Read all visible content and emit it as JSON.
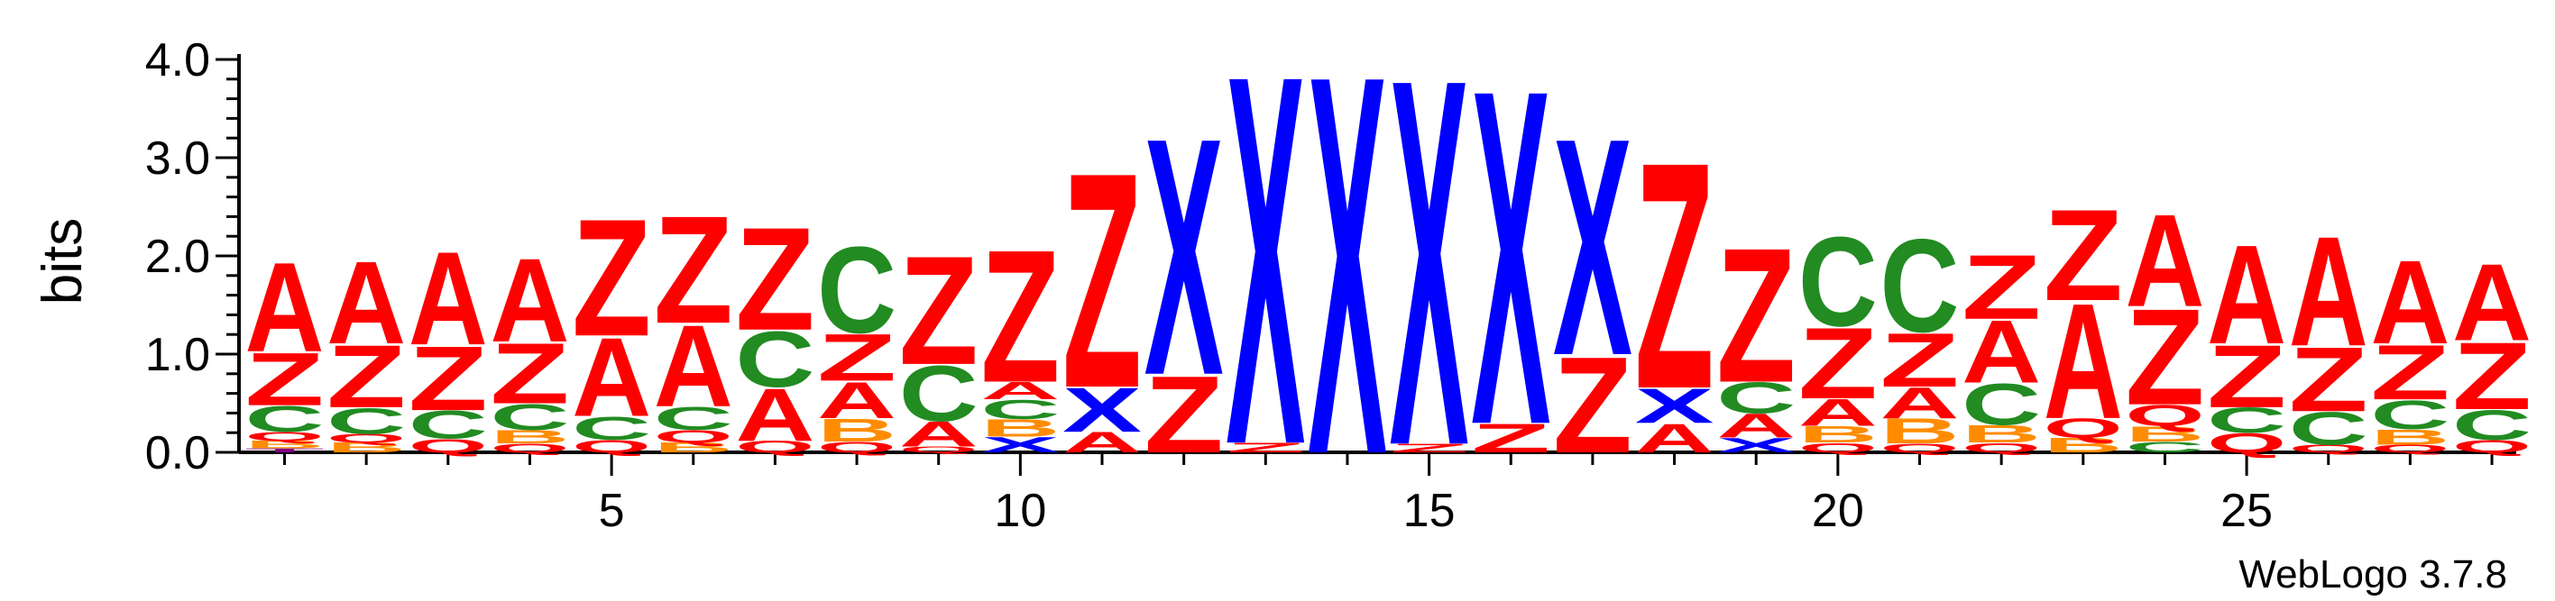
{
  "chart_data": {
    "type": "sequence-logo",
    "ylabel": "bits",
    "ylim": [
      0,
      4.0
    ],
    "y_ticks": [
      "0.0",
      "1.0",
      "2.0",
      "3.0",
      "4.0"
    ],
    "x_ticks": [
      "5",
      "10",
      "15",
      "20",
      "25"
    ],
    "x_tick_positions": [
      5,
      10,
      15,
      20,
      25
    ],
    "positions": [
      1,
      28
    ],
    "footer": "WebLogo 3.7.8",
    "colors": {
      "A": "#ff0000",
      "Z": "#ff0000",
      "X": "#0000ff",
      "C": "#228b22",
      "B": "#ff8c00",
      "Q": "#ff0000",
      "T": "#800080"
    },
    "columns": [
      {
        "pos": 1,
        "stack": [
          [
            "T",
            0.04
          ],
          [
            "B",
            0.08
          ],
          [
            "Q",
            0.09
          ],
          [
            "C",
            0.27
          ],
          [
            "Z",
            0.55
          ],
          [
            "A",
            0.93
          ]
        ]
      },
      {
        "pos": 2,
        "stack": [
          [
            "B",
            0.1
          ],
          [
            "Q",
            0.09
          ],
          [
            "C",
            0.27
          ],
          [
            "Z",
            0.65
          ],
          [
            "A",
            0.86
          ]
        ]
      },
      {
        "pos": 3,
        "stack": [
          [
            "Q",
            0.14
          ],
          [
            "C",
            0.29
          ],
          [
            "Z",
            0.67
          ],
          [
            "A",
            0.97
          ]
        ]
      },
      {
        "pos": 4,
        "stack": [
          [
            "Q",
            0.09
          ],
          [
            "B",
            0.14
          ],
          [
            "C",
            0.27
          ],
          [
            "Z",
            0.63
          ],
          [
            "A",
            0.87
          ]
        ]
      },
      {
        "pos": 5,
        "stack": [
          [
            "Q",
            0.13
          ],
          [
            "C",
            0.24
          ],
          [
            "A",
            0.82
          ],
          [
            "Z",
            1.22
          ]
        ]
      },
      {
        "pos": 6,
        "stack": [
          [
            "B",
            0.1
          ],
          [
            "Q",
            0.13
          ],
          [
            "C",
            0.24
          ],
          [
            "A",
            0.85
          ],
          [
            "Z",
            1.12
          ]
        ]
      },
      {
        "pos": 7,
        "stack": [
          [
            "Q",
            0.12
          ],
          [
            "A",
            0.55
          ],
          [
            "C",
            0.58
          ],
          [
            "Z",
            1.07
          ]
        ]
      },
      {
        "pos": 8,
        "stack": [
          [
            "Q",
            0.11
          ],
          [
            "B",
            0.24
          ],
          [
            "A",
            0.38
          ],
          [
            "Z",
            0.49
          ],
          [
            "C",
            0.9
          ]
        ]
      },
      {
        "pos": 9,
        "stack": [
          [
            "Q",
            0.06
          ],
          [
            "A",
            0.26
          ],
          [
            "C",
            0.58
          ],
          [
            "Z",
            1.13
          ]
        ]
      },
      {
        "pos": 10,
        "stack": [
          [
            "X",
            0.16
          ],
          [
            "B",
            0.18
          ],
          [
            "C",
            0.2
          ],
          [
            "A",
            0.18
          ],
          [
            "Z",
            1.38
          ]
        ]
      },
      {
        "pos": 11,
        "stack": [
          [
            "A",
            0.21
          ],
          [
            "X",
            0.46
          ],
          [
            "Z",
            2.24
          ]
        ]
      },
      {
        "pos": 12,
        "stack": [
          [
            "Z",
            0.8
          ],
          [
            "X",
            2.47
          ]
        ]
      },
      {
        "pos": 13,
        "stack": [
          [
            "Z",
            0.1
          ],
          [
            "X",
            3.85
          ]
        ]
      },
      {
        "pos": 14,
        "stack": [
          [
            "X",
            3.95
          ]
        ]
      },
      {
        "pos": 15,
        "stack": [
          [
            "Z",
            0.09
          ],
          [
            "X",
            3.82
          ]
        ]
      },
      {
        "pos": 16,
        "stack": [
          [
            "Z",
            0.3
          ],
          [
            "X",
            3.49
          ]
        ]
      },
      {
        "pos": 17,
        "stack": [
          [
            "Z",
            1.0
          ],
          [
            "X",
            2.26
          ]
        ]
      },
      {
        "pos": 18,
        "stack": [
          [
            "A",
            0.3
          ],
          [
            "X",
            0.36
          ],
          [
            "Z",
            2.36
          ]
        ]
      },
      {
        "pos": 19,
        "stack": [
          [
            "X",
            0.15
          ],
          [
            "A",
            0.25
          ],
          [
            "C",
            0.32
          ],
          [
            "Z",
            1.4
          ]
        ]
      },
      {
        "pos": 20,
        "stack": [
          [
            "Q",
            0.1
          ],
          [
            "B",
            0.17
          ],
          [
            "A",
            0.28
          ],
          [
            "Z",
            0.74
          ],
          [
            "C",
            0.93
          ]
        ]
      },
      {
        "pos": 21,
        "stack": [
          [
            "Q",
            0.09
          ],
          [
            "B",
            0.26
          ],
          [
            "A",
            0.32
          ],
          [
            "Z",
            0.56
          ],
          [
            "C",
            0.97
          ]
        ]
      },
      {
        "pos": 22,
        "stack": [
          [
            "Q",
            0.1
          ],
          [
            "B",
            0.18
          ],
          [
            "C",
            0.43
          ],
          [
            "A",
            0.65
          ],
          [
            "Z",
            0.67
          ]
        ]
      },
      {
        "pos": 23,
        "stack": [
          [
            "B",
            0.15
          ],
          [
            "Q",
            0.2
          ],
          [
            "A",
            1.2
          ],
          [
            "Z",
            0.95
          ]
        ]
      },
      {
        "pos": 24,
        "stack": [
          [
            "C",
            0.11
          ],
          [
            "B",
            0.16
          ],
          [
            "Q",
            0.22
          ],
          [
            "Z",
            1.0
          ],
          [
            "A",
            0.96
          ]
        ]
      },
      {
        "pos": 25,
        "stack": [
          [
            "Q",
            0.2
          ],
          [
            "C",
            0.26
          ],
          [
            "Z",
            0.65
          ],
          [
            "A",
            1.03
          ]
        ]
      },
      {
        "pos": 26,
        "stack": [
          [
            "Q",
            0.08
          ],
          [
            "C",
            0.34
          ],
          [
            "Z",
            0.67
          ],
          [
            "A",
            1.14
          ]
        ]
      },
      {
        "pos": 27,
        "stack": [
          [
            "Q",
            0.08
          ],
          [
            "B",
            0.16
          ],
          [
            "C",
            0.3
          ],
          [
            "Z",
            0.57
          ],
          [
            "A",
            0.87
          ]
        ]
      },
      {
        "pos": 28,
        "stack": [
          [
            "Q",
            0.13
          ],
          [
            "C",
            0.31
          ],
          [
            "Z",
            0.7
          ],
          [
            "A",
            0.8
          ]
        ]
      }
    ]
  }
}
